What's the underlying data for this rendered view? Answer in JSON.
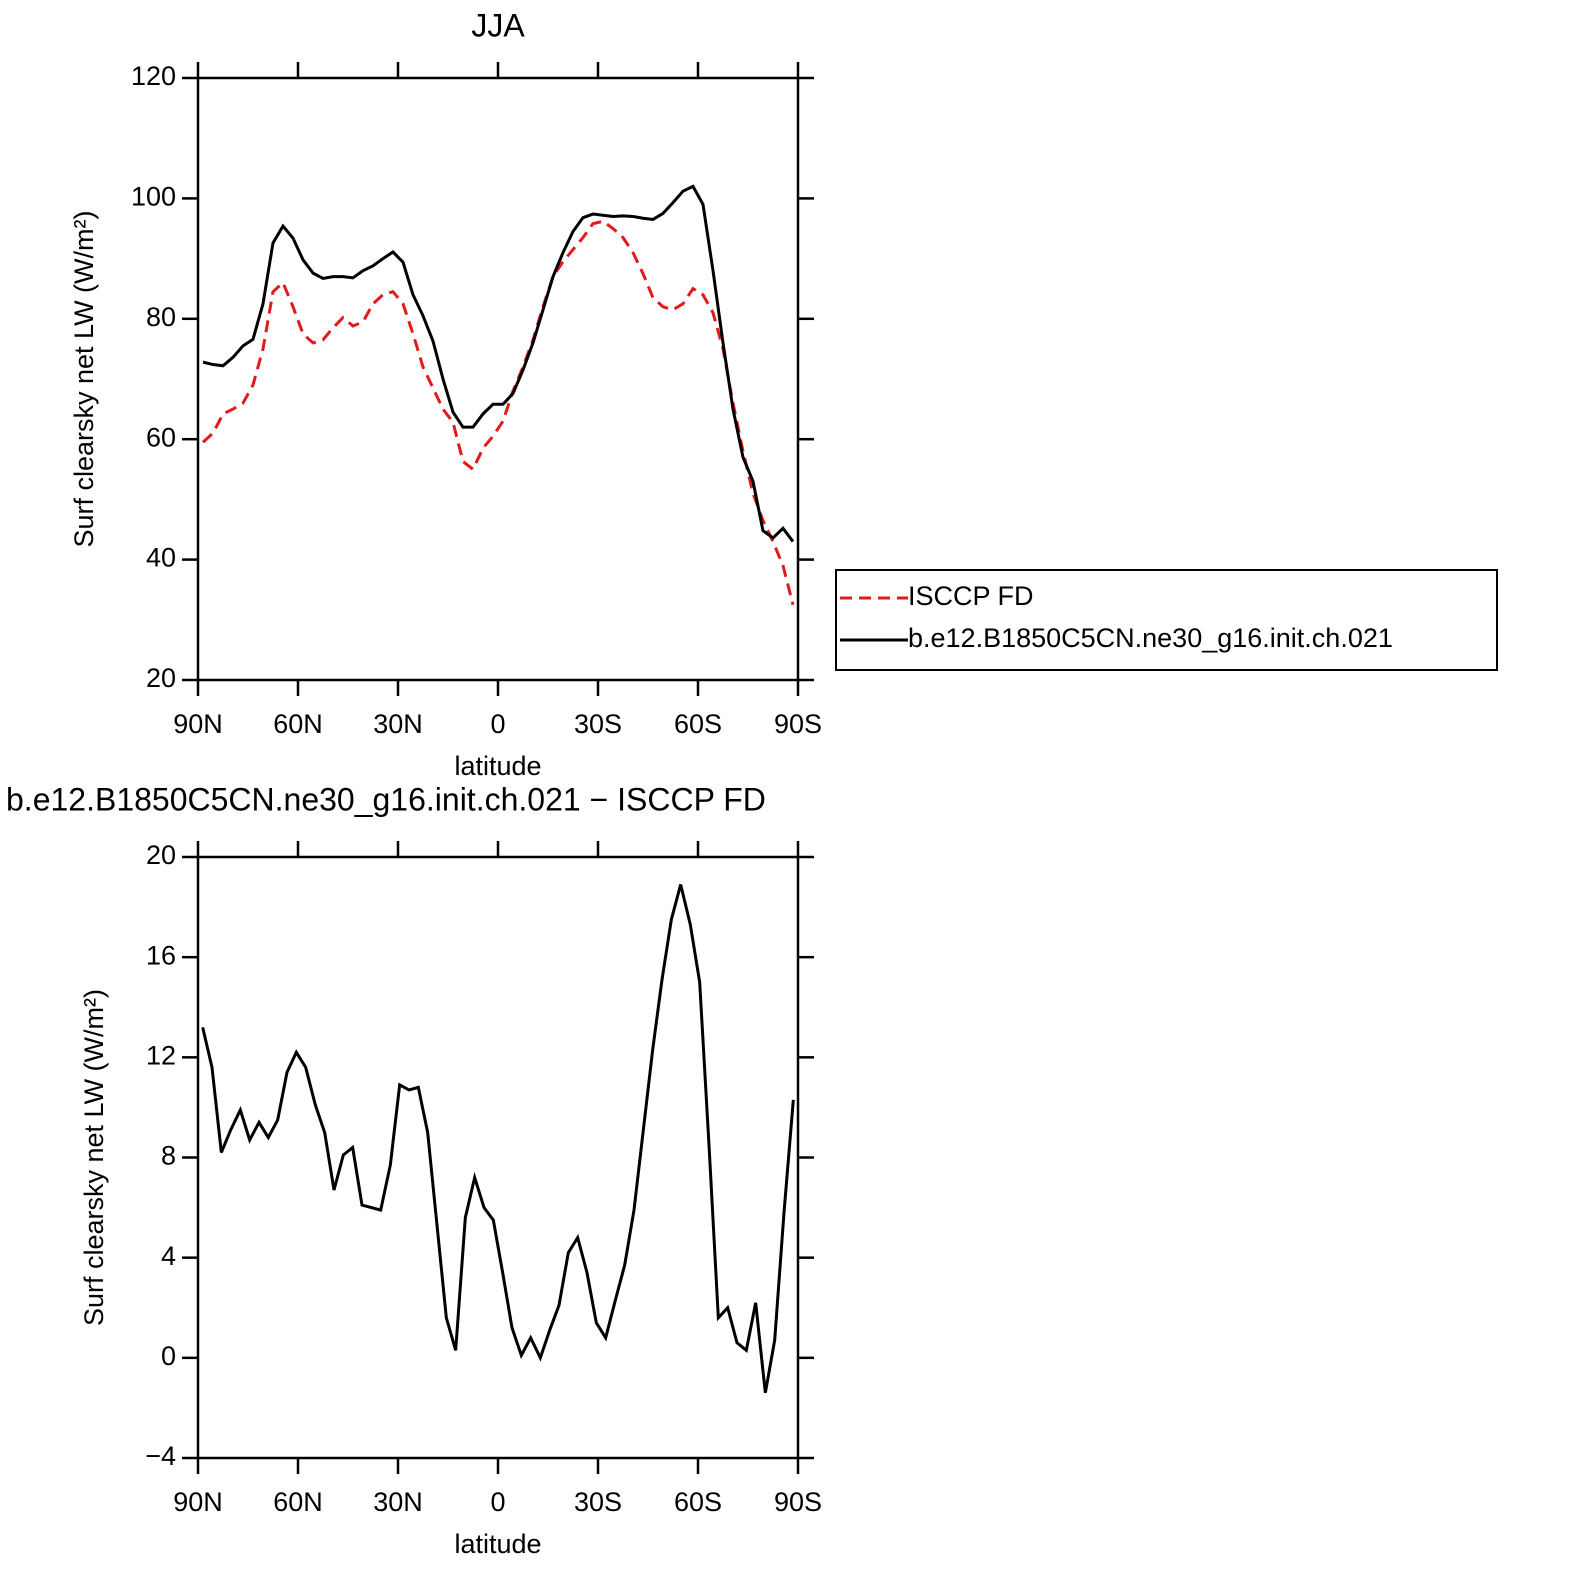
{
  "chart_data": [
    {
      "type": "line",
      "title": "JJA",
      "xlabel": "latitude",
      "ylabel": "Surf clearsky net LW (W/m²)",
      "x": [
        88.5,
        85.5,
        82.5,
        79.5,
        76.5,
        73.5,
        70.5,
        67.5,
        64.5,
        61.5,
        58.5,
        55.5,
        52.5,
        49.5,
        46.5,
        43.5,
        40.5,
        37.5,
        34.5,
        31.5,
        28.5,
        25.5,
        22.5,
        19.5,
        16.5,
        13.5,
        10.5,
        7.5,
        4.5,
        1.5,
        -1.5,
        -4.5,
        -7.5,
        -10.5,
        -13.5,
        -16.5,
        -19.5,
        -22.5,
        -25.5,
        -28.5,
        -31.5,
        -34.5,
        -37.5,
        -40.5,
        -43.5,
        -46.5,
        -49.5,
        -52.5,
        -55.5,
        -58.5,
        -61.5,
        -64.5,
        -67.5,
        -70.5,
        -73.5,
        -76.5,
        -79.5,
        -82.5,
        -85.5,
        -88.5
      ],
      "series": [
        {
          "name": "ISCCP FD",
          "color": "#e31a1c",
          "dashed": true,
          "values": [
            59.5,
            61,
            64.2,
            65,
            66,
            69,
            75,
            84.5,
            86,
            82,
            77.5,
            76,
            76.5,
            78.5,
            80.2,
            78.8,
            79.5,
            82.5,
            84,
            84.5,
            82.5,
            77.5,
            72,
            68.5,
            65,
            62.8,
            56.3,
            55,
            58.5,
            60.5,
            63,
            68,
            72,
            76.5,
            82,
            87,
            89.5,
            91.5,
            93.5,
            95.8,
            96.2,
            95,
            93.5,
            91,
            87.5,
            83.5,
            82,
            81.5,
            82.5,
            85,
            84,
            81,
            75,
            66,
            58,
            51,
            46.5,
            43,
            39,
            32.5
          ]
        },
        {
          "name": "b.e12.B1850C5CN.ne30_g16.init.ch.021",
          "color": "#000000",
          "dashed": false,
          "values": [
            72.8,
            72.4,
            72.2,
            73.6,
            75.5,
            76.6,
            82.5,
            92.6,
            95.4,
            93.4,
            89.8,
            87.6,
            86.7,
            87,
            87,
            86.8,
            88,
            88.8,
            90,
            91.1,
            89.4,
            84,
            80.5,
            76.3,
            70,
            64.5,
            62,
            62,
            64.2,
            65.8,
            65.8,
            67.6,
            71.5,
            76,
            81.5,
            87,
            91,
            94.5,
            96.8,
            97.4,
            97.2,
            97,
            97.1,
            97,
            96.7,
            96.5,
            97.5,
            99.3,
            101.2,
            102,
            99,
            88,
            76,
            65,
            57,
            53,
            44.8,
            43.6,
            45.2,
            43
          ]
        }
      ],
      "xlim": [
        90,
        -90
      ],
      "xticks": [
        {
          "value": 90,
          "label": "90N"
        },
        {
          "value": 60,
          "label": "60N"
        },
        {
          "value": 30,
          "label": "30N"
        },
        0,
        {
          "value": -30,
          "label": "30S"
        },
        {
          "value": -60,
          "label": "60S"
        },
        {
          "value": -90,
          "label": "90S"
        }
      ],
      "ylim": [
        20,
        120
      ],
      "yticks": [
        20,
        40,
        60,
        80,
        100,
        120
      ],
      "legend": "right"
    },
    {
      "type": "line",
      "title": "b.e12.B1850C5CN.ne30_g16.init.ch.021 − ISCCP FD",
      "xlabel": "latitude",
      "ylabel": "Surf clearsky net LW (W/m²)",
      "x": [
        88.6,
        85.8,
        83.0,
        80.2,
        77.3,
        74.5,
        71.7,
        68.9,
        66.1,
        63.3,
        60.5,
        57.7,
        54.8,
        52.0,
        49.2,
        46.4,
        43.6,
        40.8,
        38.0,
        35.2,
        32.3,
        29.5,
        26.7,
        23.9,
        21.1,
        18.3,
        15.5,
        12.7,
        9.8,
        7.0,
        4.2,
        1.4,
        -1.4,
        -4.2,
        -7.0,
        -9.8,
        -12.7,
        -15.5,
        -18.3,
        -21.1,
        -23.9,
        -26.7,
        -29.5,
        -32.3,
        -35.2,
        -38.0,
        -40.8,
        -43.6,
        -46.4,
        -49.2,
        -52.0,
        -54.8,
        -57.7,
        -60.5,
        -63.3,
        -66.1,
        -68.9,
        -71.7,
        -74.5,
        -77.3,
        -80.2,
        -83.0,
        -85.8,
        -88.6
      ],
      "series": [
        {
          "color": "#000000",
          "dashed": false,
          "values": [
            13.2,
            11.6,
            8.2,
            9.1,
            9.9,
            8.7,
            9.4,
            8.8,
            9.5,
            11.4,
            12.2,
            11.6,
            10.1,
            9.0,
            6.7,
            8.1,
            8.4,
            6.1,
            6.0,
            5.9,
            7.7,
            10.9,
            10.7,
            10.8,
            9.0,
            5.3,
            1.6,
            0.3,
            5.6,
            7.2,
            6.0,
            5.5,
            3.4,
            1.2,
            0.1,
            0.8,
            0,
            1.1,
            2.1,
            4.2,
            4.8,
            3.4,
            1.4,
            0.8,
            2.3,
            3.7,
            5.9,
            9.1,
            12.3,
            15.1,
            17.5,
            18.9,
            17.3,
            15.0,
            8.5,
            1.6,
            2.0,
            0.6,
            0.3,
            2.2,
            -1.4,
            0.7,
            5.8,
            10.3
          ]
        }
      ],
      "xlim": [
        90,
        -90
      ],
      "xticks": [
        {
          "value": 90,
          "label": "90N"
        },
        {
          "value": 60,
          "label": "60N"
        },
        {
          "value": 30,
          "label": "30N"
        },
        0,
        {
          "value": -30,
          "label": "30S"
        },
        {
          "value": -60,
          "label": "60S"
        },
        {
          "value": -90,
          "label": "90S"
        }
      ],
      "ylim": [
        -4,
        20
      ],
      "yticks": [
        {
          "value": -4,
          "label": "−4"
        },
        0,
        4,
        8,
        12,
        16,
        20
      ]
    }
  ]
}
